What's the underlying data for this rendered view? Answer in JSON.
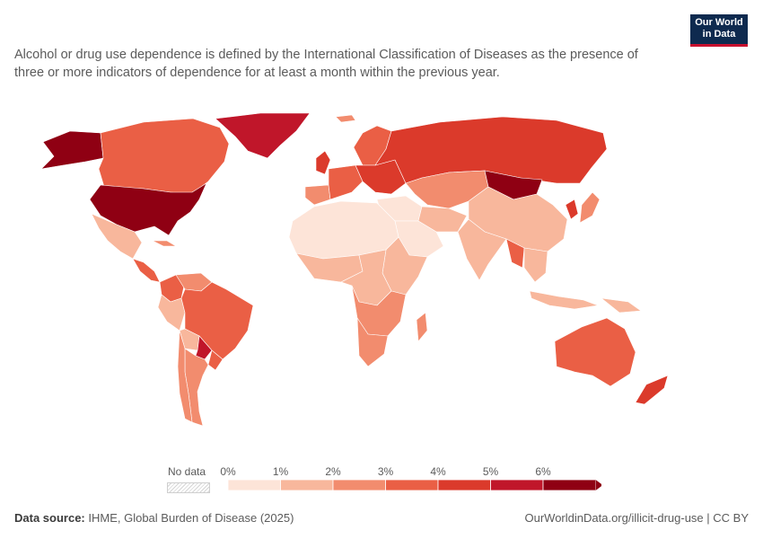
{
  "subtitle": "Alcohol or drug use dependence is defined by the International Classification of Diseases as the presence of three or more indicators of dependence for at least a month within the previous year.",
  "logo": {
    "line1": "Our World",
    "line2": "in Data"
  },
  "legend": {
    "no_data_label": "No data",
    "ticks": [
      "0%",
      "1%",
      "2%",
      "3%",
      "4%",
      "5%",
      "6%"
    ],
    "bin_colors": [
      "#fde4d8",
      "#f8b79c",
      "#f28c6e",
      "#ea5f45",
      "#db3a2b",
      "#c0162a",
      "#8f0013"
    ]
  },
  "map": {
    "regions": [
      {
        "name": "United States",
        "bin": 6
      },
      {
        "name": "Alaska",
        "bin": 6
      },
      {
        "name": "Canada",
        "bin": 3
      },
      {
        "name": "Greenland",
        "bin": 5
      },
      {
        "name": "Mexico",
        "bin": 1
      },
      {
        "name": "Central America",
        "bin": 3
      },
      {
        "name": "Colombia",
        "bin": 3
      },
      {
        "name": "Venezuela",
        "bin": 2
      },
      {
        "name": "Brazil",
        "bin": 3
      },
      {
        "name": "Peru",
        "bin": 1
      },
      {
        "name": "Bolivia",
        "bin": 1
      },
      {
        "name": "Paraguay",
        "bin": 5
      },
      {
        "name": "Argentina",
        "bin": 2
      },
      {
        "name": "Chile",
        "bin": 2
      },
      {
        "name": "Uruguay",
        "bin": 3
      },
      {
        "name": "Iceland",
        "bin": 2
      },
      {
        "name": "Scandinavia",
        "bin": 3
      },
      {
        "name": "United Kingdom",
        "bin": 4
      },
      {
        "name": "Western Europe",
        "bin": 3
      },
      {
        "name": "Iberia",
        "bin": 2
      },
      {
        "name": "Eastern Europe",
        "bin": 4
      },
      {
        "name": "Russia",
        "bin": 4
      },
      {
        "name": "Central Asia",
        "bin": 2
      },
      {
        "name": "Mongolia",
        "bin": 6
      },
      {
        "name": "China",
        "bin": 1
      },
      {
        "name": "Korea",
        "bin": 4
      },
      {
        "name": "Japan",
        "bin": 2
      },
      {
        "name": "North Africa",
        "bin": 0
      },
      {
        "name": "Middle East",
        "bin": 0
      },
      {
        "name": "Arabian Peninsula",
        "bin": 0
      },
      {
        "name": "Iran",
        "bin": 1
      },
      {
        "name": "India",
        "bin": 1
      },
      {
        "name": "Myanmar",
        "bin": 3
      },
      {
        "name": "Southeast Asia",
        "bin": 1
      },
      {
        "name": "Indonesia",
        "bin": 1
      },
      {
        "name": "Papua New Guinea",
        "bin": 1
      },
      {
        "name": "West Africa",
        "bin": 1
      },
      {
        "name": "Central Africa",
        "bin": 1
      },
      {
        "name": "East Africa",
        "bin": 1
      },
      {
        "name": "Southern Africa",
        "bin": 2
      },
      {
        "name": "South Africa",
        "bin": 2
      },
      {
        "name": "Madagascar",
        "bin": 2
      },
      {
        "name": "Australia",
        "bin": 3
      },
      {
        "name": "New Zealand",
        "bin": 4
      },
      {
        "name": "Cuba",
        "bin": 2
      }
    ]
  },
  "footer": {
    "source_label": "Data source:",
    "source_text": "IHME, Global Burden of Disease (2025)",
    "url_text": "OurWorldinData.org/illicit-drug-use | CC BY"
  }
}
